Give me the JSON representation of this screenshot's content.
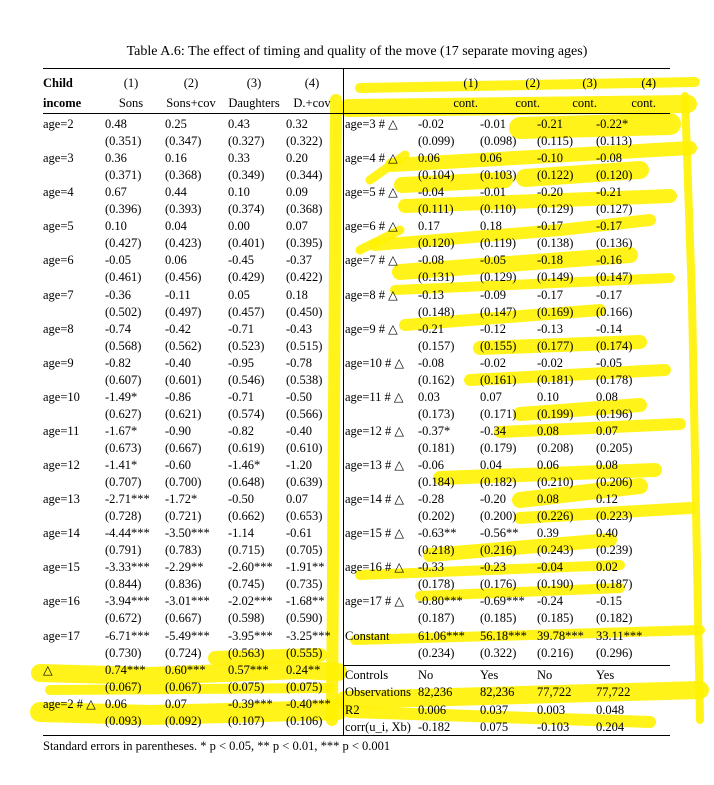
{
  "caption": "Table A.6: The effect of timing and quality of the move (17 separate moving ages)",
  "left": {
    "header_row1": [
      "Child",
      "(1)",
      "(2)",
      "(3)",
      "(4)"
    ],
    "header_row2": [
      "income",
      "Sons",
      "Sons+cov",
      "Daughters",
      "D.+cov"
    ],
    "rows": [
      {
        "label": "age=2",
        "coef": [
          "0.48",
          "0.25",
          "0.43",
          "0.32"
        ],
        "se": [
          "(0.351)",
          "(0.347)",
          "(0.327)",
          "(0.322)"
        ]
      },
      {
        "label": "age=3",
        "coef": [
          "0.36",
          "0.16",
          "0.33",
          "0.20"
        ],
        "se": [
          "(0.371)",
          "(0.368)",
          "(0.349)",
          "(0.344)"
        ]
      },
      {
        "label": "age=4",
        "coef": [
          "0.67",
          "0.44",
          "0.10",
          "0.09"
        ],
        "se": [
          "(0.396)",
          "(0.393)",
          "(0.374)",
          "(0.368)"
        ]
      },
      {
        "label": "age=5",
        "coef": [
          "0.10",
          "0.04",
          "0.00",
          "0.07"
        ],
        "se": [
          "(0.427)",
          "(0.423)",
          "(0.401)",
          "(0.395)"
        ]
      },
      {
        "label": "age=6",
        "coef": [
          "-0.05",
          "0.06",
          "-0.45",
          "-0.37"
        ],
        "se": [
          "(0.461)",
          "(0.456)",
          "(0.429)",
          "(0.422)"
        ]
      },
      {
        "label": "age=7",
        "coef": [
          "-0.36",
          "-0.11",
          "0.05",
          "0.18"
        ],
        "se": [
          "(0.502)",
          "(0.497)",
          "(0.457)",
          "(0.450)"
        ]
      },
      {
        "label": "age=8",
        "coef": [
          "-0.74",
          "-0.42",
          "-0.71",
          "-0.43"
        ],
        "se": [
          "(0.568)",
          "(0.562)",
          "(0.523)",
          "(0.515)"
        ]
      },
      {
        "label": "age=9",
        "coef": [
          "-0.82",
          "-0.40",
          "-0.95",
          "-0.78"
        ],
        "se": [
          "(0.607)",
          "(0.601)",
          "(0.546)",
          "(0.538)"
        ]
      },
      {
        "label": "age=10",
        "coef": [
          "-1.49*",
          "-0.86",
          "-0.71",
          "-0.50"
        ],
        "se": [
          "(0.627)",
          "(0.621)",
          "(0.574)",
          "(0.566)"
        ]
      },
      {
        "label": "age=11",
        "coef": [
          "-1.67*",
          "-0.90",
          "-0.82",
          "-0.40"
        ],
        "se": [
          "(0.673)",
          "(0.667)",
          "(0.619)",
          "(0.610)"
        ]
      },
      {
        "label": "age=12",
        "coef": [
          "-1.41*",
          "-0.60",
          "-1.46*",
          "-1.20"
        ],
        "se": [
          "(0.707)",
          "(0.700)",
          "(0.648)",
          "(0.639)"
        ]
      },
      {
        "label": "age=13",
        "coef": [
          "-2.71***",
          "-1.72*",
          "-0.50",
          "0.07"
        ],
        "se": [
          "(0.728)",
          "(0.721)",
          "(0.662)",
          "(0.653)"
        ]
      },
      {
        "label": "age=14",
        "coef": [
          "-4.44***",
          "-3.50***",
          "-1.14",
          "-0.61"
        ],
        "se": [
          "(0.791)",
          "(0.783)",
          "(0.715)",
          "(0.705)"
        ]
      },
      {
        "label": "age=15",
        "coef": [
          "-3.33***",
          "-2.29**",
          "-2.60***",
          "-1.91**"
        ],
        "se": [
          "(0.844)",
          "(0.836)",
          "(0.745)",
          "(0.735)"
        ]
      },
      {
        "label": "age=16",
        "coef": [
          "-3.94***",
          "-3.01***",
          "-2.02***",
          "-1.68**"
        ],
        "se": [
          "(0.672)",
          "(0.667)",
          "(0.598)",
          "(0.590)"
        ]
      },
      {
        "label": "age=17",
        "coef": [
          "-6.71***",
          "-5.49***",
          "-3.95***",
          "-3.25***"
        ],
        "se": [
          "(0.730)",
          "(0.724)",
          "(0.563)",
          "(0.555)"
        ]
      },
      {
        "label": "△",
        "coef": [
          "0.74***",
          "0.60***",
          "0.57***",
          "0.24**"
        ],
        "se": [
          "(0.067)",
          "(0.067)",
          "(0.075)",
          "(0.075)"
        ]
      },
      {
        "label": "age=2 # △",
        "coef": [
          "0.06",
          "0.07",
          "-0.39***",
          "-0.40***"
        ],
        "se": [
          "(0.093)",
          "(0.092)",
          "(0.107)",
          "(0.106)"
        ]
      }
    ]
  },
  "right": {
    "header_row1": [
      "(1)",
      "(2)",
      "(3)",
      "(4)"
    ],
    "header_row2": [
      "cont.",
      "cont.",
      "cont.",
      "cont."
    ],
    "rows": [
      {
        "label": "age=3 # △",
        "coef": [
          "-0.02",
          "-0.01",
          "-0.21",
          "-0.22*"
        ],
        "se": [
          "(0.099)",
          "(0.098)",
          "(0.115)",
          "(0.113)"
        ]
      },
      {
        "label": "age=4 # △",
        "coef": [
          "0.06",
          "0.06",
          "-0.10",
          "-0.08"
        ],
        "se": [
          "(0.104)",
          "(0.103)",
          "(0.122)",
          "(0.120)"
        ]
      },
      {
        "label": "age=5 # △",
        "coef": [
          "-0.04",
          "-0.01",
          "-0.20",
          "-0.21"
        ],
        "se": [
          "(0.111)",
          "(0.110)",
          "(0.129)",
          "(0.127)"
        ]
      },
      {
        "label": "age=6 # △",
        "coef": [
          "0.17",
          "0.18",
          "-0.17",
          "-0.17"
        ],
        "se": [
          "(0.120)",
          "(0.119)",
          "(0.138)",
          "(0.136)"
        ]
      },
      {
        "label": "age=7 # △",
        "coef": [
          "-0.08",
          "-0.05",
          "-0.18",
          "-0.16"
        ],
        "se": [
          "(0.131)",
          "(0.129)",
          "(0.149)",
          "(0.147)"
        ]
      },
      {
        "label": "age=8 # △",
        "coef": [
          "-0.13",
          "-0.09",
          "-0.17",
          "-0.17"
        ],
        "se": [
          "(0.148)",
          "(0.147)",
          "(0.169)",
          "(0.166)"
        ]
      },
      {
        "label": "age=9 # △",
        "coef": [
          "-0.21",
          "-0.12",
          "-0.13",
          "-0.14"
        ],
        "se": [
          "(0.157)",
          "(0.155)",
          "(0.177)",
          "(0.174)"
        ]
      },
      {
        "label": "age=10 # △",
        "coef": [
          "-0.08",
          "-0.02",
          "-0.02",
          "-0.05"
        ],
        "se": [
          "(0.162)",
          "(0.161)",
          "(0.181)",
          "(0.178)"
        ]
      },
      {
        "label": "age=11 # △",
        "coef": [
          "0.03",
          "0.07",
          "0.10",
          "0.08"
        ],
        "se": [
          "(0.173)",
          "(0.171)",
          "(0.199)",
          "(0.196)"
        ]
      },
      {
        "label": "age=12 # △",
        "coef": [
          "-0.37*",
          "-0.34",
          "0.08",
          "0.07"
        ],
        "se": [
          "(0.181)",
          "(0.179)",
          "(0.208)",
          "(0.205)"
        ]
      },
      {
        "label": "age=13 # △",
        "coef": [
          "-0.06",
          "0.04",
          "0.06",
          "0.08"
        ],
        "se": [
          "(0.184)",
          "(0.182)",
          "(0.210)",
          "(0.206)"
        ]
      },
      {
        "label": "age=14 # △",
        "coef": [
          "-0.28",
          "-0.20",
          "0.08",
          "0.12"
        ],
        "se": [
          "(0.202)",
          "(0.200)",
          "(0.226)",
          "(0.223)"
        ]
      },
      {
        "label": "age=15 # △",
        "coef": [
          "-0.63**",
          "-0.56**",
          "0.39",
          "0.40"
        ],
        "se": [
          "(0.218)",
          "(0.216)",
          "(0.243)",
          "(0.239)"
        ]
      },
      {
        "label": "age=16 # △",
        "coef": [
          "-0.33",
          "-0.23",
          "-0.04",
          "0.02"
        ],
        "se": [
          "(0.178)",
          "(0.176)",
          "(0.190)",
          "(0.187)"
        ]
      },
      {
        "label": "age=17 # △",
        "coef": [
          "-0.80***",
          "-0.69***",
          "-0.24",
          "-0.15"
        ],
        "se": [
          "(0.187)",
          "(0.185)",
          "(0.185)",
          "(0.182)"
        ]
      },
      {
        "label": "Constant",
        "coef": [
          "61.06***",
          "56.18***",
          "39.78***",
          "33.11***"
        ],
        "se": [
          "(0.234)",
          "(0.322)",
          "(0.216)",
          "(0.296)"
        ]
      }
    ],
    "stats": [
      {
        "label": "Controls",
        "values": [
          "No",
          "Yes",
          "No",
          "Yes"
        ]
      },
      {
        "label": "Observations",
        "values": [
          "82,236",
          "82,236",
          "77,722",
          "77,722"
        ]
      },
      {
        "label": "R2",
        "values": [
          "0.006",
          "0.037",
          "0.003",
          "0.048"
        ]
      },
      {
        "label": "corr(u_i, Xb)",
        "values": [
          "-0.182",
          "0.075",
          "-0.103",
          "0.204"
        ]
      }
    ]
  },
  "footnote": "Standard errors in parentheses. * p < 0.05, ** p < 0.01, *** p < 0.001",
  "highlight_color": "#fff200"
}
